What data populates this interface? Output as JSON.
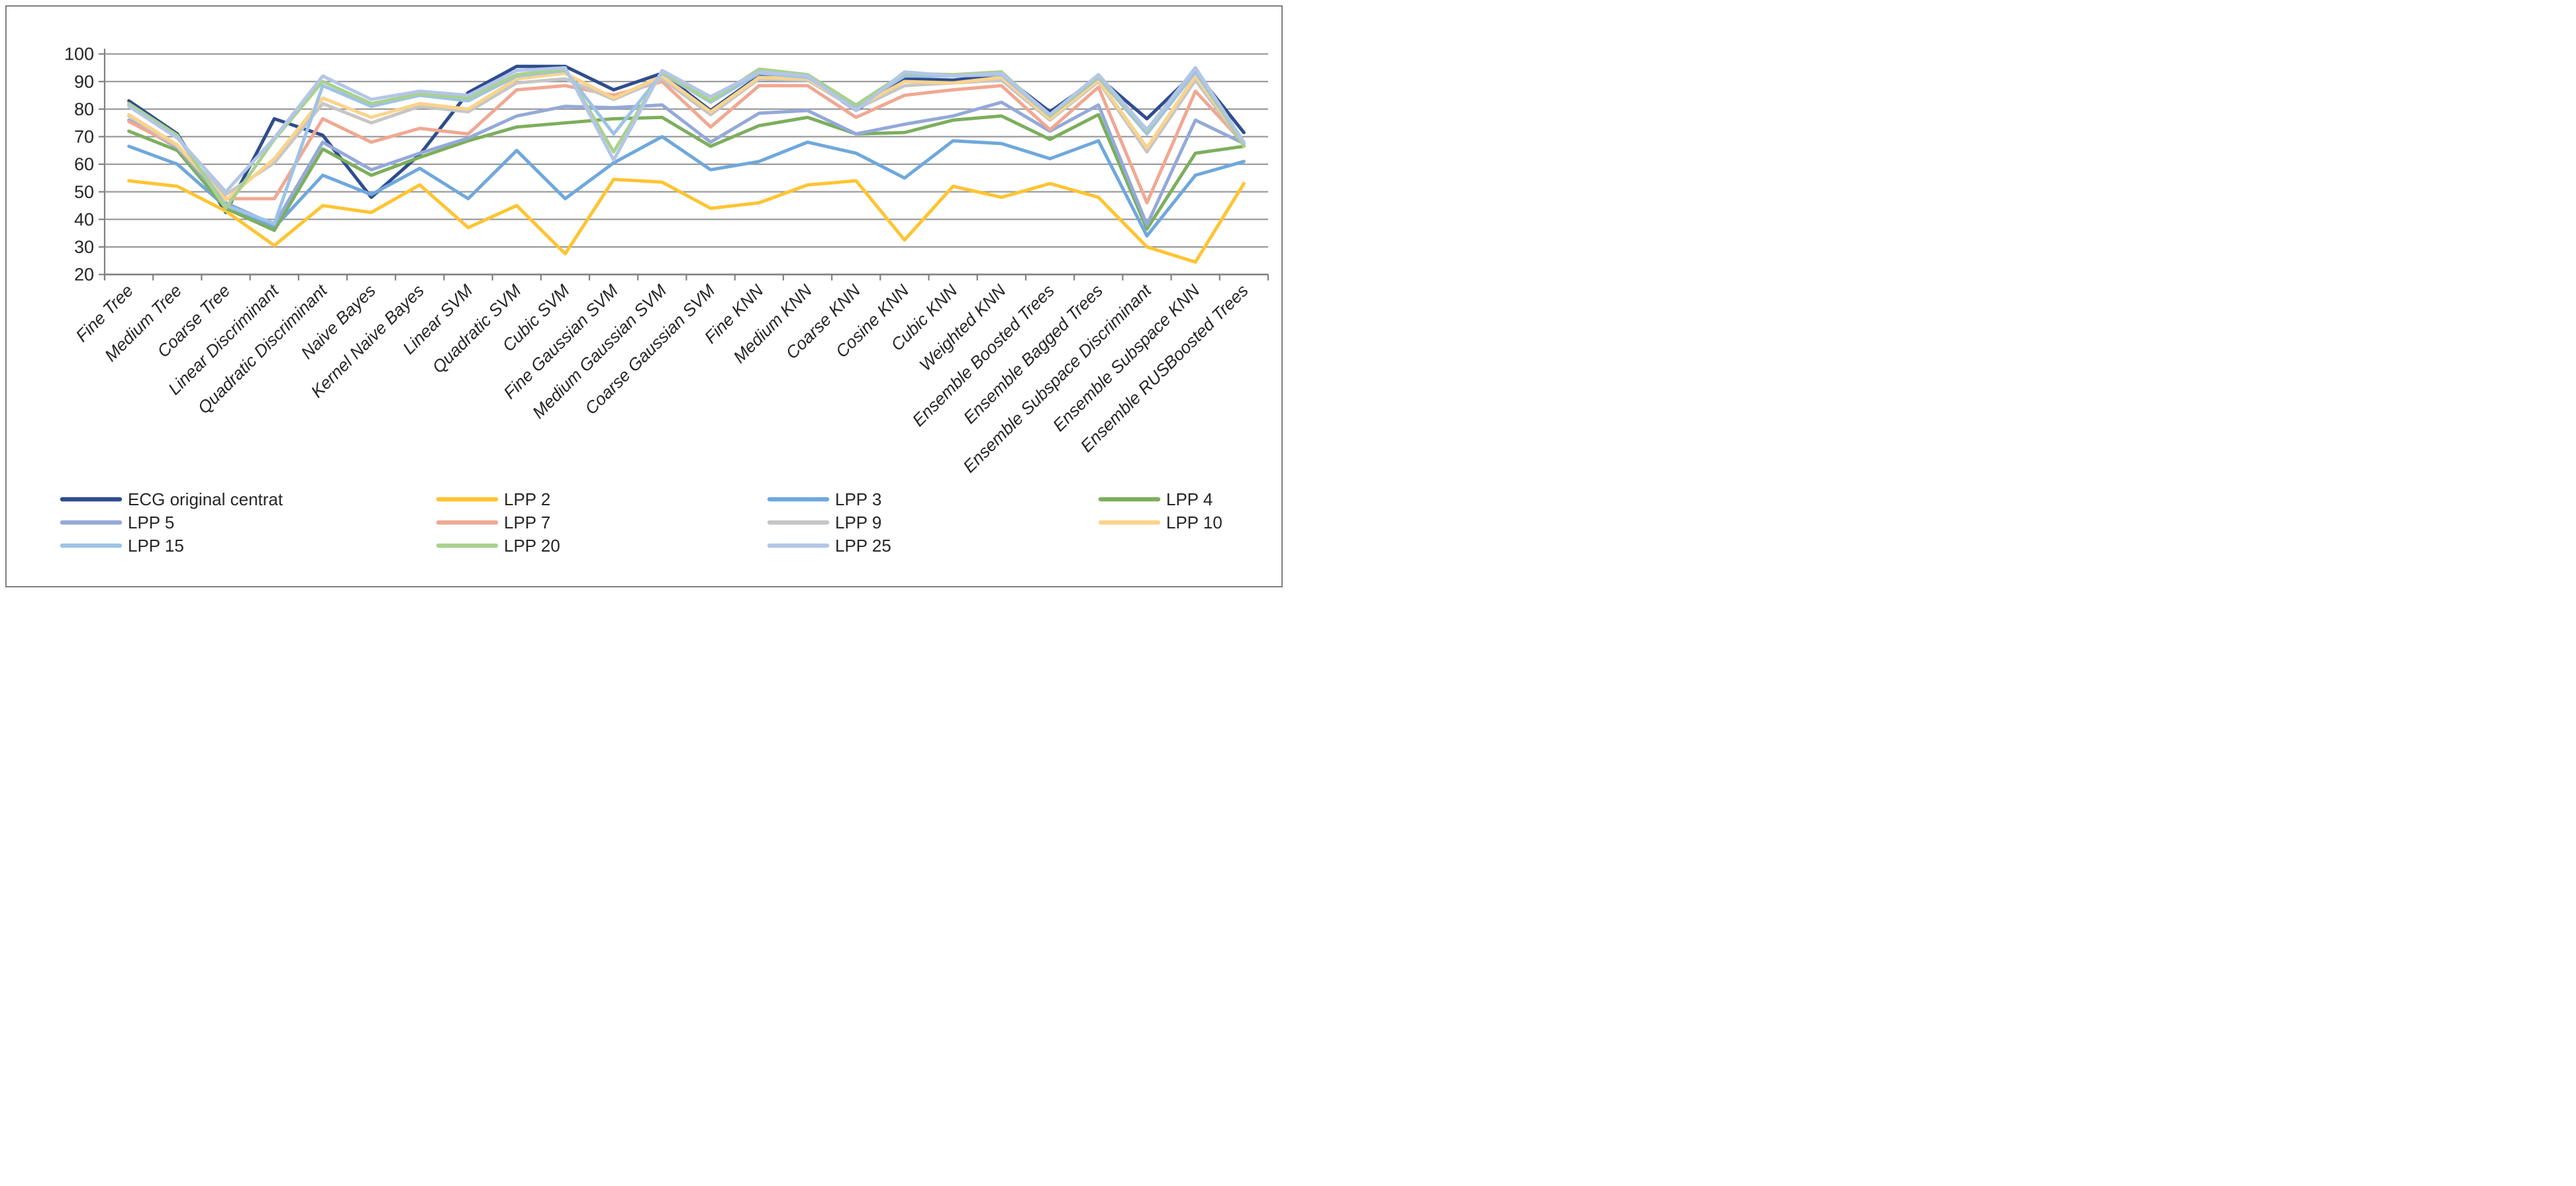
{
  "figure": {
    "background": "#ffffff",
    "border_color": "#7f7f7f",
    "gridline_color": "#9b9b9b",
    "axis_color": "#808080",
    "text_color": "#262626"
  },
  "chart_data": {
    "type": "line",
    "title": "",
    "xlabel": "",
    "ylabel": "",
    "ylim": [
      20,
      100
    ],
    "yticks": [
      20,
      30,
      40,
      50,
      60,
      70,
      80,
      90,
      100
    ],
    "grid": true,
    "legend_position": "bottom-left",
    "categories": [
      "Fine Tree",
      "Medium Tree",
      "Coarse Tree",
      "Linear Discriminant",
      "Quadratic Discriminant",
      "Naive Bayes",
      "Kernel Naive Bayes",
      "Linear SVM",
      "Quadratic SVM",
      "Cubic SVM",
      "Fine Gaussian SVM",
      "Medium Gaussian SVM",
      "Coarse Gaussian SVM",
      "Fine KNN",
      "Medium KNN",
      "Coarse KNN",
      "Cosine KNN",
      "Cubic KNN",
      "Weighted KNN",
      "Ensemble Boosted Trees",
      "Ensemble Bagged Trees",
      "Ensemble Subspace Discriminant",
      "Ensemble Subspace KNN",
      "Ensemble RUSBoosted Trees"
    ],
    "series": [
      {
        "name": "ECG original centrat",
        "color": "#2e4d8e",
        "values": [
          83,
          71,
          42.5,
          76.5,
          70.5,
          48,
          63.5,
          86,
          95.5,
          95.5,
          87,
          93,
          79.5,
          92,
          91.5,
          79.5,
          91,
          90.5,
          92.5,
          79,
          91.5,
          76.5,
          93.5,
          71.5
        ]
      },
      {
        "name": "LPP 2",
        "color": "#ffc432",
        "values": [
          54,
          52,
          43,
          30.5,
          45,
          42.5,
          52.5,
          37,
          45,
          27.5,
          54.5,
          53.5,
          44,
          46,
          52.5,
          54,
          32.5,
          52,
          48,
          53,
          48,
          30,
          24.5,
          53
        ]
      },
      {
        "name": "LPP 3",
        "color": "#6fa8dc",
        "values": [
          66.5,
          60,
          44.5,
          37,
          56,
          49,
          58.5,
          47.5,
          65,
          47.5,
          60.5,
          70,
          58,
          61,
          68,
          64,
          55,
          68.5,
          67.5,
          62,
          68.5,
          34,
          56,
          61
        ]
      },
      {
        "name": "LPP 4",
        "color": "#7caf5c",
        "values": [
          72,
          65,
          44,
          36,
          65.5,
          56,
          62.5,
          68.5,
          73.5,
          75,
          76.5,
          77,
          66.5,
          74,
          77,
          71,
          71.5,
          76,
          77.5,
          69,
          78,
          36.5,
          64,
          66.5
        ]
      },
      {
        "name": "LPP 5",
        "color": "#94a9d9",
        "values": [
          76,
          66,
          46,
          38,
          68,
          58,
          64,
          69.5,
          77.5,
          81,
          80.5,
          81.5,
          68,
          78.5,
          79.5,
          71,
          74.5,
          77.5,
          82.5,
          72,
          81.5,
          38,
          76,
          67.5
        ]
      },
      {
        "name": "LPP 7",
        "color": "#f0a892",
        "values": [
          75.5,
          66.5,
          47.5,
          47.5,
          76.5,
          68,
          73,
          71,
          87,
          88.5,
          85,
          90,
          73.5,
          88.5,
          88.5,
          77,
          85,
          87,
          88.5,
          72.5,
          88,
          46,
          86.5,
          67.5
        ]
      },
      {
        "name": "LPP 9",
        "color": "#c6c6c6",
        "values": [
          77.5,
          66.5,
          49,
          60.5,
          82,
          75,
          81,
          79,
          89.5,
          91,
          83.5,
          91,
          78,
          91,
          90.5,
          80,
          88.5,
          89.5,
          90.5,
          76,
          90,
          64.5,
          90.5,
          67
        ]
      },
      {
        "name": "LPP 10",
        "color": "#fbd38a",
        "values": [
          78,
          67,
          47,
          62,
          84,
          77,
          82,
          80,
          91,
          93,
          84,
          92,
          79,
          91.5,
          91,
          80.5,
          90,
          89.5,
          91.5,
          76.5,
          90.5,
          66,
          92,
          67.5
        ]
      },
      {
        "name": "LPP 15",
        "color": "#9dc3e6",
        "values": [
          81.5,
          70,
          45,
          38.5,
          88.5,
          81,
          85,
          83,
          92,
          94,
          71,
          93,
          82.5,
          93,
          91.5,
          81,
          92,
          92,
          92.5,
          77.5,
          91.5,
          71,
          93.5,
          67.5
        ]
      },
      {
        "name": "LPP 20",
        "color": "#a9d18e",
        "values": [
          82,
          70.5,
          44,
          69,
          90,
          82,
          85.5,
          84,
          92.5,
          94.5,
          64.5,
          93.5,
          83,
          94.5,
          92.5,
          81.5,
          93,
          92.5,
          93.5,
          77.5,
          92,
          72,
          95,
          66.5
        ]
      },
      {
        "name": "LPP 25",
        "color": "#b3c6e7",
        "values": [
          81,
          69.5,
          50,
          69.5,
          92,
          83.5,
          86.5,
          85,
          94,
          95,
          61.5,
          94,
          84.5,
          93.5,
          92,
          79.5,
          93.5,
          92,
          93,
          78,
          92.5,
          72.5,
          95,
          68
        ]
      }
    ],
    "legend_rows": [
      [
        "ECG original centrat",
        "LPP 2",
        "LPP 3",
        "LPP 4"
      ],
      [
        "LPP 5",
        "LPP 7",
        "LPP 9",
        "LPP 10"
      ],
      [
        "LPP 15",
        "LPP 20",
        "LPP 25"
      ]
    ]
  }
}
